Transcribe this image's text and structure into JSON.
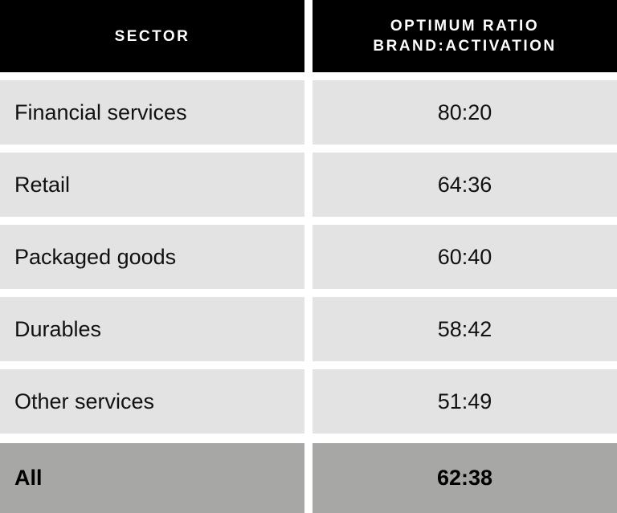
{
  "table": {
    "header": {
      "sector": "SECTOR",
      "ratio": [
        "OPTIMUM RATIO",
        "BRAND:ACTIVATION"
      ]
    },
    "rows": [
      [
        "Financial services",
        "80:20"
      ],
      [
        "Retail",
        "64:36"
      ],
      [
        "Packaged goods",
        "60:40"
      ],
      [
        "Durables",
        "58:42"
      ],
      [
        "Other services",
        "51:49"
      ]
    ],
    "total": [
      "All",
      "62:38"
    ]
  }
}
